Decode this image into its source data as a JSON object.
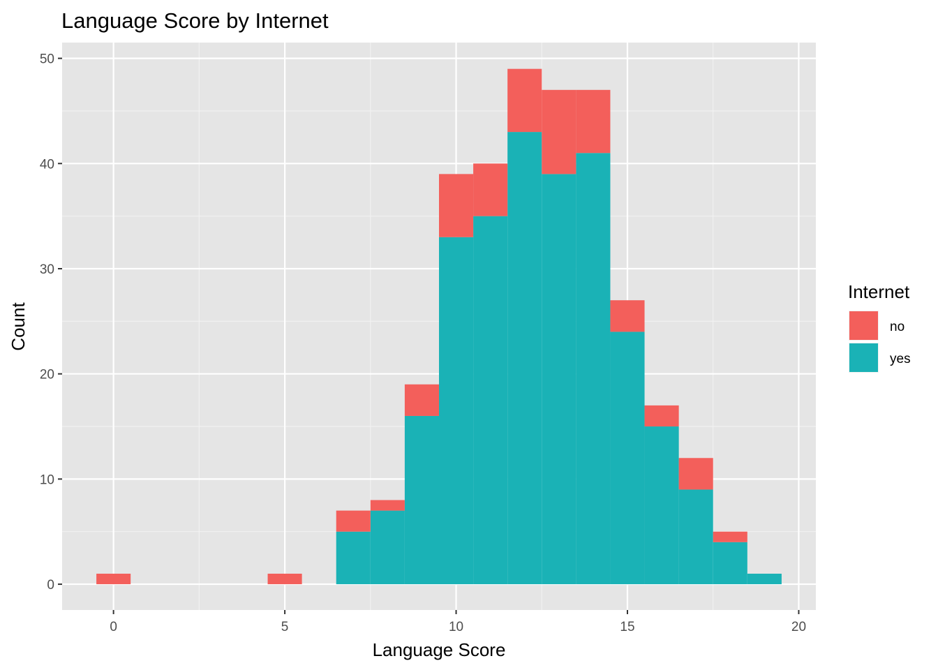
{
  "chart_data": {
    "type": "bar",
    "title": "Language Score by Internet",
    "xlabel": "Language Score",
    "ylabel": "Count",
    "x": [
      0,
      5,
      7,
      8,
      9,
      10,
      11,
      12,
      13,
      14,
      15,
      16,
      17,
      18,
      19
    ],
    "series": [
      {
        "name": "yes",
        "color": "#1ab2b6",
        "values": [
          0,
          0,
          5,
          7,
          16,
          33,
          35,
          43,
          39,
          41,
          24,
          15,
          9,
          4,
          1
        ]
      },
      {
        "name": "no",
        "color": "#f35f5b",
        "values": [
          1,
          1,
          2,
          1,
          3,
          6,
          5,
          6,
          8,
          6,
          3,
          2,
          3,
          1,
          0
        ]
      }
    ],
    "stacked": true,
    "bin_width": 1,
    "xlim": [
      -1.5,
      20.5
    ],
    "ylim": [
      -2.45,
      51.5
    ],
    "xticks": [
      0,
      5,
      10,
      15,
      20
    ],
    "yticks": [
      0,
      10,
      20,
      30,
      40,
      50
    ],
    "grid": true,
    "panel_background": "#e5e5e5",
    "legend": {
      "title": "Internet",
      "position": "right",
      "entries": [
        "no",
        "yes"
      ]
    }
  }
}
